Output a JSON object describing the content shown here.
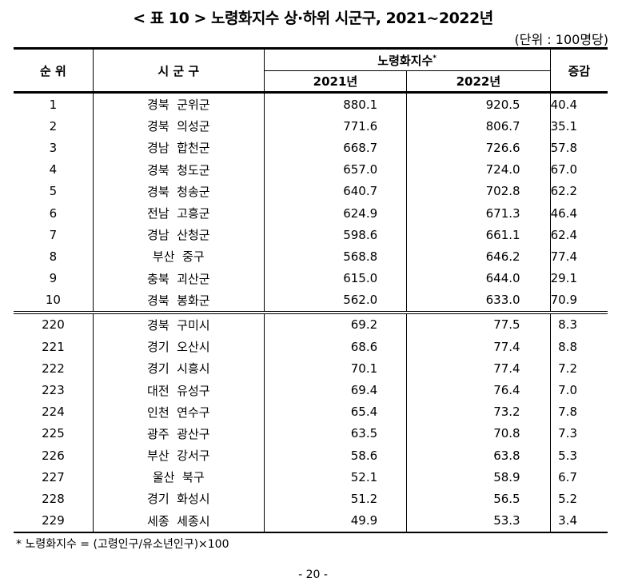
{
  "title": "< 표 10 > 노령화지수 상·하위 시군구, 2021~2022년",
  "unit": "(단위 : 100명당)",
  "headers": {
    "rank": "순 위",
    "region": "시 군 구",
    "index": "노령화지수",
    "index_mark": "*",
    "y2021": "2021년",
    "y2022": "2022년",
    "change": "증감"
  },
  "top_rows": [
    [
      "1",
      "경북  군위군",
      "880.1",
      "920.5",
      "40.4"
    ],
    [
      "2",
      "경북  의성군",
      "771.6",
      "806.7",
      "35.1"
    ],
    [
      "3",
      "경남  합천군",
      "668.7",
      "726.6",
      "57.8"
    ],
    [
      "4",
      "경북  청도군",
      "657.0",
      "724.0",
      "67.0"
    ],
    [
      "5",
      "경북  청송군",
      "640.7",
      "702.8",
      "62.2"
    ],
    [
      "6",
      "전남  고흥군",
      "624.9",
      "671.3",
      "46.4"
    ],
    [
      "7",
      "경남  산청군",
      "598.6",
      "661.1",
      "62.4"
    ],
    [
      "8",
      "부산  중구",
      "568.8",
      "646.2",
      "77.4"
    ],
    [
      "9",
      "충북  괴산군",
      "615.0",
      "644.0",
      "29.1"
    ],
    [
      "10",
      "경북  봉화군",
      "562.0",
      "633.0",
      "70.9"
    ]
  ],
  "bottom_rows": [
    [
      "220",
      "경북  구미시",
      "69.2",
      "77.5",
      "8.3"
    ],
    [
      "221",
      "경기  오산시",
      "68.6",
      "77.4",
      "8.8"
    ],
    [
      "222",
      "경기  시흥시",
      "70.1",
      "77.4",
      "7.2"
    ],
    [
      "223",
      "대전  유성구",
      "69.4",
      "76.4",
      "7.0"
    ],
    [
      "224",
      "인천  연수구",
      "65.4",
      "73.2",
      "7.8"
    ],
    [
      "225",
      "광주  광산구",
      "63.5",
      "70.8",
      "7.3"
    ],
    [
      "226",
      "부산  강서구",
      "58.6",
      "63.8",
      "5.3"
    ],
    [
      "227",
      "울산  북구",
      "52.1",
      "58.9",
      "6.7"
    ],
    [
      "228",
      "경기  화성시",
      "51.2",
      "56.5",
      "5.2"
    ],
    [
      "229",
      "세종  세종시",
      "49.9",
      "53.3",
      "3.4"
    ]
  ],
  "footnote": "* 노령화지수 = (고령인구/유소년인구)×100",
  "page": "- 20 -"
}
